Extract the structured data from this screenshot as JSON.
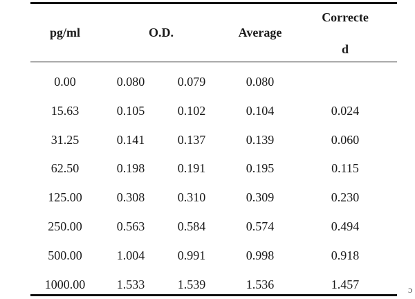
{
  "table": {
    "headers": {
      "conc": "pg/ml",
      "od": "O.D.",
      "average": "Average",
      "corrected_line1": "Correcte",
      "corrected_line2": "d"
    },
    "rows": [
      {
        "conc": "0.00",
        "od1": "0.080",
        "od2": "0.079",
        "average": "0.080",
        "corrected": ""
      },
      {
        "conc": "15.63",
        "od1": "0.105",
        "od2": "0.102",
        "average": "0.104",
        "corrected": "0.024"
      },
      {
        "conc": "31.25",
        "od1": "0.141",
        "od2": "0.137",
        "average": "0.139",
        "corrected": "0.060"
      },
      {
        "conc": "62.50",
        "od1": "0.198",
        "od2": "0.191",
        "average": "0.195",
        "corrected": "0.115"
      },
      {
        "conc": "125.00",
        "od1": "0.308",
        "od2": "0.310",
        "average": "0.309",
        "corrected": "0.230"
      },
      {
        "conc": "250.00",
        "od1": "0.563",
        "od2": "0.584",
        "average": "0.574",
        "corrected": "0.494"
      },
      {
        "conc": "500.00",
        "od1": "1.004",
        "od2": "0.991",
        "average": "0.998",
        "corrected": "0.918"
      },
      {
        "conc": "1000.00",
        "od1": "1.533",
        "od2": "1.539",
        "average": "1.536",
        "corrected": "1.457"
      }
    ]
  },
  "edge_mark": "ɔ"
}
